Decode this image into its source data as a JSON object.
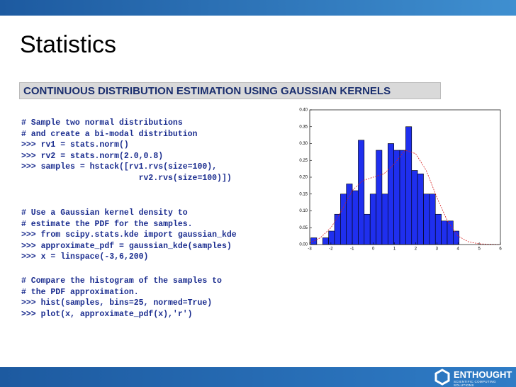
{
  "slide": {
    "title": "Statistics",
    "banner": "CONTINUOUS DISTRIBUTION ESTIMATION USING GAUSSIAN KERNELS",
    "logo": "ENTHOUGHT",
    "tagline": "SCIENTIFIC COMPUTING SOLUTIONS"
  },
  "code": {
    "blocks": [
      {
        "lines": [
          "# Sample two normal distributions",
          "# and create a bi-modal distribution",
          ">>> rv1 = stats.norm()",
          ">>> rv2 = stats.norm(2.0,0.8)",
          ">>> samples = hstack([rv1.rvs(size=100),",
          "                        rv2.rvs(size=100)])"
        ]
      },
      {
        "lines": [
          "# Use a Gaussian kernel density to",
          "# estimate the PDF for the samples.",
          ">>> from scipy.stats.kde import gaussian_kde",
          ">>> approximate_pdf = gaussian_kde(samples)",
          ">>> x = linspace(-3,6,200)"
        ]
      },
      {
        "lines": [
          "# Compare the histogram of the samples to",
          "# the PDF approximation.",
          ">>> hist(samples, bins=25, normed=True)",
          ">>> plot(x, approximate_pdf(x),'r')"
        ]
      }
    ]
  },
  "chart_data": {
    "type": "histogram",
    "bins": [
      -2.95,
      -2.67,
      -2.39,
      -2.11,
      -1.83,
      -1.55,
      -1.27,
      -0.99,
      -0.71,
      -0.43,
      -0.15,
      0.13,
      0.41,
      0.69,
      0.97,
      1.25,
      1.53,
      1.81,
      2.09,
      2.37,
      2.65,
      2.93,
      3.21,
      3.49,
      3.77,
      4.05
    ],
    "values": [
      0.02,
      0,
      0.02,
      0.04,
      0.09,
      0.15,
      0.18,
      0.16,
      0.31,
      0.09,
      0.15,
      0.28,
      0.15,
      0.3,
      0.28,
      0.28,
      0.35,
      0.22,
      0.21,
      0.15,
      0.15,
      0.09,
      0.07,
      0.07,
      0.04
    ],
    "color": "#1f2fee",
    "kde": {
      "color": "#d62020",
      "x": [
        -3,
        -2.5,
        -2,
        -1.5,
        -1,
        -0.5,
        0,
        0.5,
        1,
        1.5,
        2,
        2.5,
        3,
        3.5,
        4,
        4.5,
        5,
        6
      ],
      "values": [
        0.005,
        0.02,
        0.05,
        0.1,
        0.16,
        0.19,
        0.2,
        0.21,
        0.24,
        0.28,
        0.27,
        0.22,
        0.14,
        0.07,
        0.025,
        0.008,
        0.002,
        0
      ]
    },
    "xlim": [
      -3,
      6
    ],
    "xticks": [
      -3,
      -2,
      -1,
      0,
      1,
      2,
      3,
      4,
      5,
      6
    ],
    "ylim": [
      0,
      0.4
    ],
    "yticks": [
      {
        "value": 0,
        "label": "0.00"
      },
      {
        "value": 0.05,
        "label": "0.05"
      },
      {
        "value": 0.1,
        "label": "0.10"
      },
      {
        "value": 0.15,
        "label": "0.15"
      },
      {
        "value": 0.2,
        "label": "0.20"
      },
      {
        "value": 0.25,
        "label": "0.25"
      },
      {
        "value": 0.3,
        "label": "0.30"
      },
      {
        "value": 0.35,
        "label": "0.35"
      },
      {
        "value": 0.4,
        "label": "0.40"
      }
    ]
  }
}
